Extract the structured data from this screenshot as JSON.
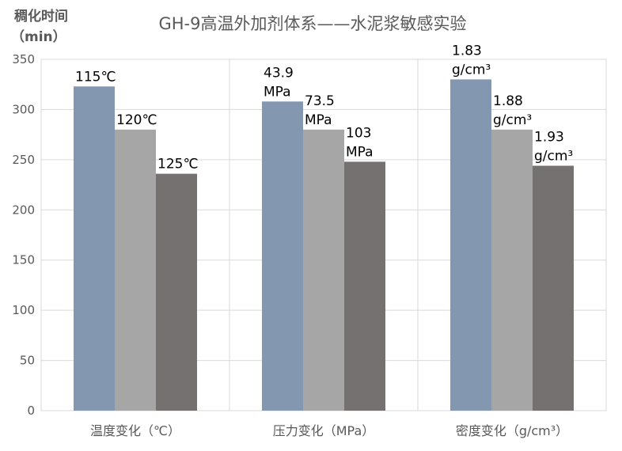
{
  "chart_data": {
    "type": "bar",
    "title": "GH-9高温外加剂体系——水泥浆敏感实验",
    "ylabel_lines": [
      "稠化时间",
      "（min）"
    ],
    "ylim": [
      0,
      350
    ],
    "yticks": [
      0,
      50,
      100,
      150,
      200,
      250,
      300,
      350
    ],
    "grid": true,
    "legend": "none",
    "categories": [
      "温度变化（℃）",
      "压力变化（MPa）",
      "密度变化（g/cm³）"
    ],
    "series": [
      {
        "values": [
          323,
          308,
          330
        ],
        "color": "#8497b0"
      },
      {
        "values": [
          280,
          280,
          280
        ],
        "color": "#a6a6a6"
      },
      {
        "values": [
          236,
          248,
          244
        ],
        "color": "#757171"
      }
    ],
    "data_labels": [
      [
        [
          "115℃"
        ],
        [
          "120℃"
        ],
        [
          "125℃"
        ]
      ],
      [
        [
          "43.9",
          "MPa"
        ],
        [
          "73.5",
          "MPa"
        ],
        [
          "103",
          "MPa"
        ]
      ],
      [
        [
          "1.83",
          "g/cm³"
        ],
        [
          "1.88",
          "g/cm³"
        ],
        [
          "1.93",
          "g/cm³"
        ]
      ]
    ]
  },
  "colors": {
    "background": "#ffffff",
    "grid": "#d9d9d9",
    "axis_text": "#595959",
    "title_text": "#595959",
    "label_text": "#000000"
  }
}
